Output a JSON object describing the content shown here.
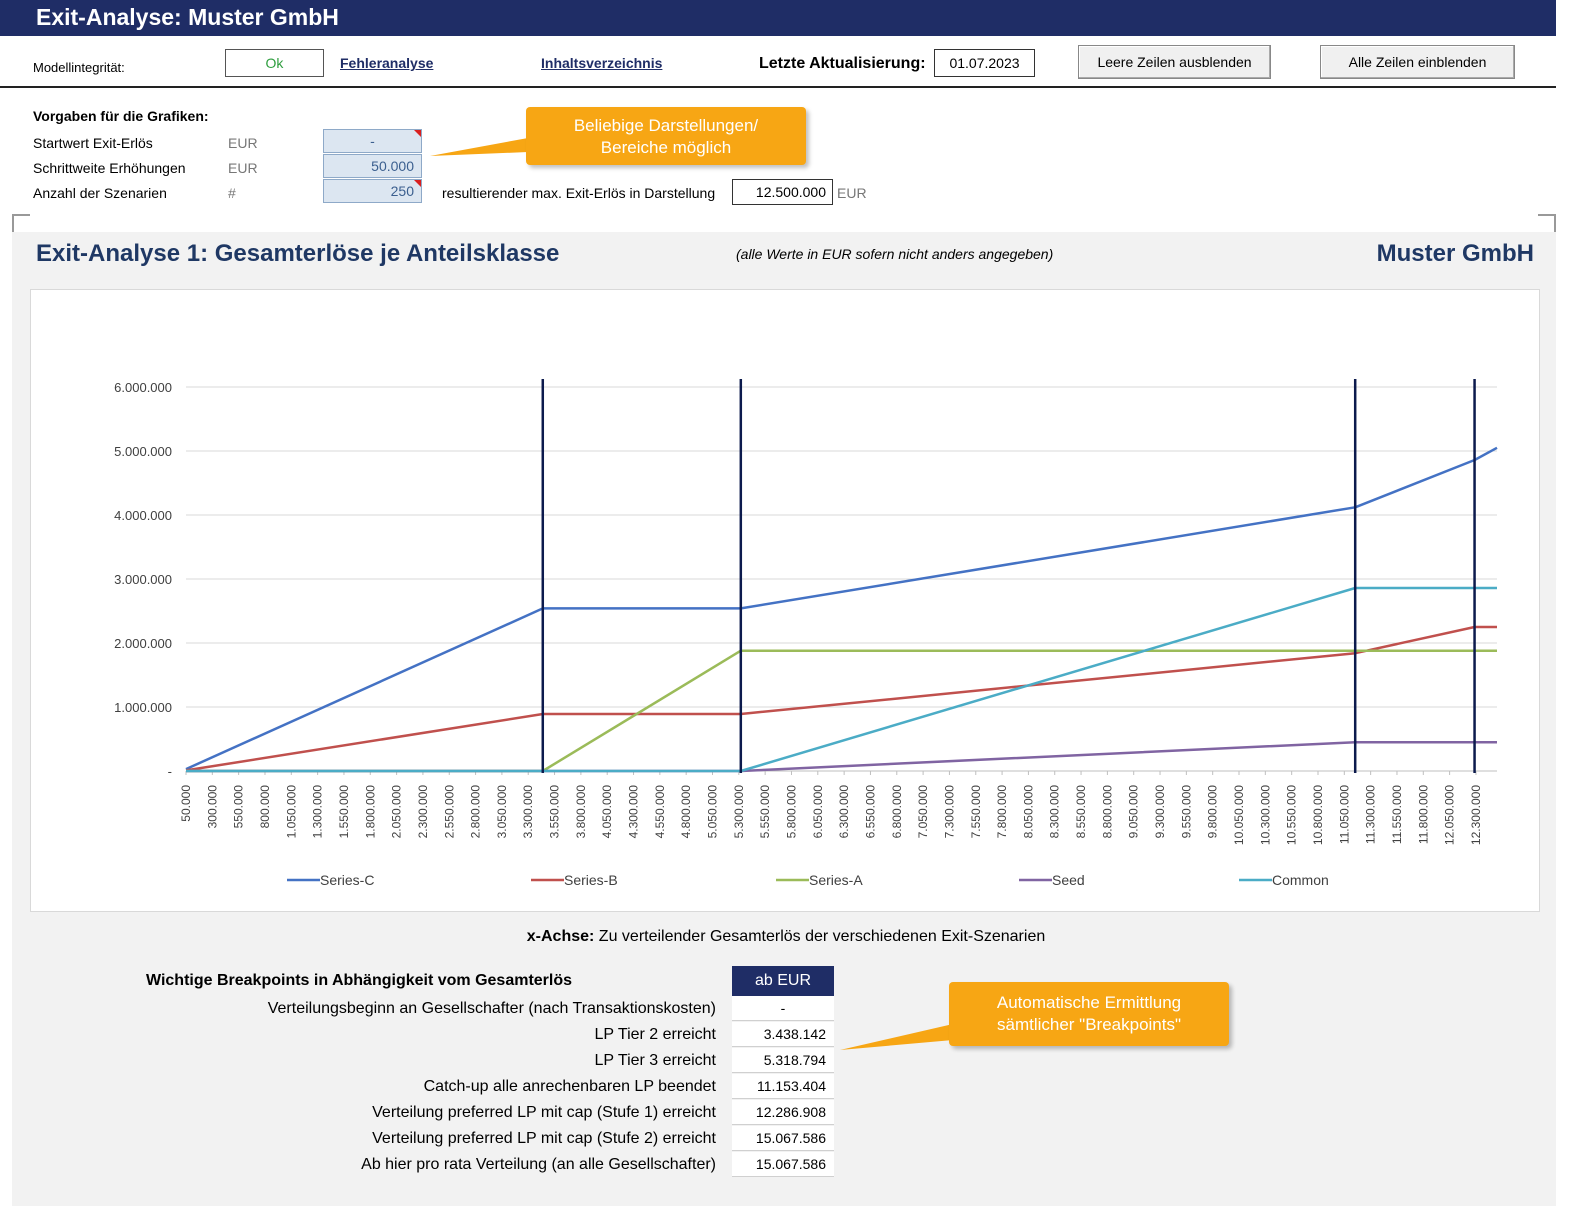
{
  "header": {
    "title": "Exit-Analyse: Muster GmbH"
  },
  "toolbar": {
    "integrity_label": "Modellintegrität:",
    "integrity_value": "Ok",
    "error_link": "Fehleranalyse",
    "toc_link": "Inhaltsverzeichnis",
    "update_label": "Letzte Aktualisierung:",
    "update_value": "01.07.2023",
    "hide_button": "Leere Zeilen ausblenden",
    "show_button": "Alle Zeilen einblenden"
  },
  "settings": {
    "heading": "Vorgaben für die Grafiken:",
    "rows": [
      {
        "label": "Startwert Exit-Erlös",
        "unit": "EUR",
        "value": "-"
      },
      {
        "label": "Schrittweite Erhöhungen",
        "unit": "EUR",
        "value": "50.000"
      },
      {
        "label": "Anzahl der Szenarien",
        "unit": "#",
        "value": "250"
      }
    ],
    "max_label": "resultierender max. Exit-Erlös in Darstellung",
    "max_value": "12.500.000",
    "max_unit": "EUR"
  },
  "callouts": {
    "top": [
      "Beliebige Darstellungen/",
      "Bereiche möglich"
    ],
    "bottom": [
      "Automatische Ermittlung",
      "sämtlicher \"Breakpoints\""
    ]
  },
  "panel": {
    "title": "Exit-Analyse 1: Gesamterlöse je Anteilsklasse",
    "note": "(alle Werte in EUR sofern nicht anders angegeben)",
    "company": "Muster GmbH"
  },
  "colors": {
    "Series-C": "#4472c4",
    "Series-B": "#c0504d",
    "Series-A": "#9bbb59",
    "Seed": "#8064a2",
    "Common": "#4bacc6",
    "breakpoint_lines": "#0c1a4d"
  },
  "chart_data": {
    "type": "line",
    "xlabel": "",
    "ylabel": "",
    "x_start": 50000,
    "x_step": 50000,
    "x_end": 12500000,
    "x_tick_labels": [
      "50.000",
      "300.000",
      "550.000",
      "800.000",
      "1.050.000",
      "1.300.000",
      "1.550.000",
      "1.800.000",
      "2.050.000",
      "2.300.000",
      "2.550.000",
      "2.800.000",
      "3.050.000",
      "3.300.000",
      "3.550.000",
      "3.800.000",
      "4.050.000",
      "4.300.000",
      "4.550.000",
      "4.800.000",
      "5.050.000",
      "5.300.000",
      "5.550.000",
      "5.800.000",
      "6.050.000",
      "6.300.000",
      "6.550.000",
      "6.800.000",
      "7.050.000",
      "7.300.000",
      "7.550.000",
      "7.800.000",
      "8.050.000",
      "8.300.000",
      "8.550.000",
      "8.800.000",
      "9.050.000",
      "9.300.000",
      "9.550.000",
      "9.800.000",
      "10.050.000",
      "10.300.000",
      "10.550.000",
      "10.800.000",
      "11.050.000",
      "11.300.000",
      "11.550.000",
      "11.800.000",
      "12.050.000",
      "12.300.000"
    ],
    "y_tick_labels": [
      "-",
      "1.000.000",
      "2.000.000",
      "3.000.000",
      "4.000.000",
      "5.000.000",
      "6.000.000"
    ],
    "ylim": [
      0,
      6000000
    ],
    "grid": true,
    "legend": "bottom",
    "breakpoints_x": [
      3438142,
      5318794,
      11153404,
      12286908
    ],
    "series": [
      {
        "name": "Series-C",
        "points": [
          [
            50000,
            30000
          ],
          [
            3438142,
            2540000
          ],
          [
            5318794,
            2540000
          ],
          [
            11153404,
            4120000
          ],
          [
            12286908,
            4860000
          ],
          [
            12500000,
            5050000
          ]
        ]
      },
      {
        "name": "Series-B",
        "points": [
          [
            50000,
            10000
          ],
          [
            3438142,
            890000
          ],
          [
            5318794,
            890000
          ],
          [
            11153404,
            1840000
          ],
          [
            12286908,
            2250000
          ],
          [
            12500000,
            2250000
          ]
        ]
      },
      {
        "name": "Series-A",
        "points": [
          [
            50000,
            0
          ],
          [
            3438142,
            0
          ],
          [
            5318794,
            1880000
          ],
          [
            12500000,
            1880000
          ]
        ]
      },
      {
        "name": "Seed",
        "points": [
          [
            50000,
            0
          ],
          [
            5318794,
            0
          ],
          [
            11153404,
            450000
          ],
          [
            12500000,
            450000
          ]
        ]
      },
      {
        "name": "Common",
        "points": [
          [
            50000,
            0
          ],
          [
            5318794,
            0
          ],
          [
            11153404,
            2860000
          ],
          [
            12500000,
            2860000
          ]
        ]
      }
    ]
  },
  "x_axis_note": {
    "label": "x-Achse:",
    "text": "Zu verteilender Gesamterlös der verschiedenen Exit-Szenarien"
  },
  "breakpoints": {
    "heading": "Wichtige Breakpoints in Abhängigkeit vom Gesamterlös",
    "column": "ab EUR",
    "rows": [
      {
        "label": "Verteilungsbeginn an Gesellschafter (nach Transaktionskosten)",
        "value": "-"
      },
      {
        "label": "LP Tier 2 erreicht",
        "value": "3.438.142"
      },
      {
        "label": "LP Tier 3 erreicht",
        "value": "5.318.794"
      },
      {
        "label": "Catch-up alle anrechenbaren LP beendet",
        "value": "11.153.404"
      },
      {
        "label": "Verteilung preferred LP mit cap (Stufe 1) erreicht",
        "value": "12.286.908"
      },
      {
        "label": "Verteilung preferred LP mit cap (Stufe 2) erreicht",
        "value": "15.067.586"
      },
      {
        "label": "Ab hier pro rata Verteilung (an alle Gesellschafter)",
        "value": "15.067.586"
      }
    ]
  }
}
